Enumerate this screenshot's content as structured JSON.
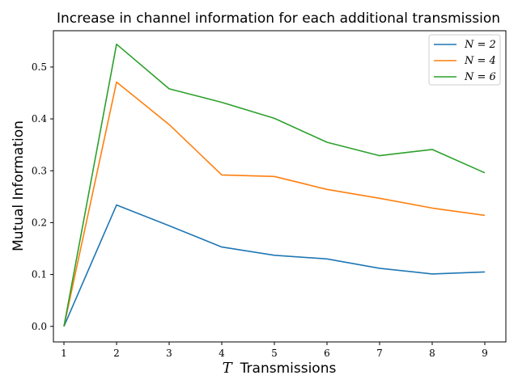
{
  "chart_data": {
    "type": "line",
    "title": "Increase in channel information for each additional transmission",
    "xlabel_var": "T",
    "xlabel_text": "Transmissions",
    "ylabel": "Mutual Information",
    "x": [
      1,
      2,
      3,
      4,
      5,
      6,
      7,
      8,
      9
    ],
    "xlim": [
      0.8,
      9.4
    ],
    "ylim": [
      -0.03,
      0.57
    ],
    "xticks": [
      "1",
      "2",
      "3",
      "4",
      "5",
      "6",
      "7",
      "8",
      "9"
    ],
    "yticks": [
      "0.0",
      "0.1",
      "0.2",
      "0.3",
      "0.4",
      "0.5"
    ],
    "grid": false,
    "legend_position": "top-right",
    "series": [
      {
        "name": "N = 2",
        "color": "#1f77b4",
        "values": [
          0.0,
          0.234,
          0.194,
          0.153,
          0.137,
          0.13,
          0.112,
          0.101,
          0.105
        ]
      },
      {
        "name": "N = 4",
        "color": "#ff7f0e",
        "values": [
          0.0,
          0.471,
          0.389,
          0.292,
          0.289,
          0.264,
          0.247,
          0.228,
          0.214
        ]
      },
      {
        "name": "N = 6",
        "color": "#2ca02c",
        "values": [
          0.0,
          0.544,
          0.458,
          0.432,
          0.401,
          0.355,
          0.329,
          0.341,
          0.296
        ]
      }
    ]
  }
}
